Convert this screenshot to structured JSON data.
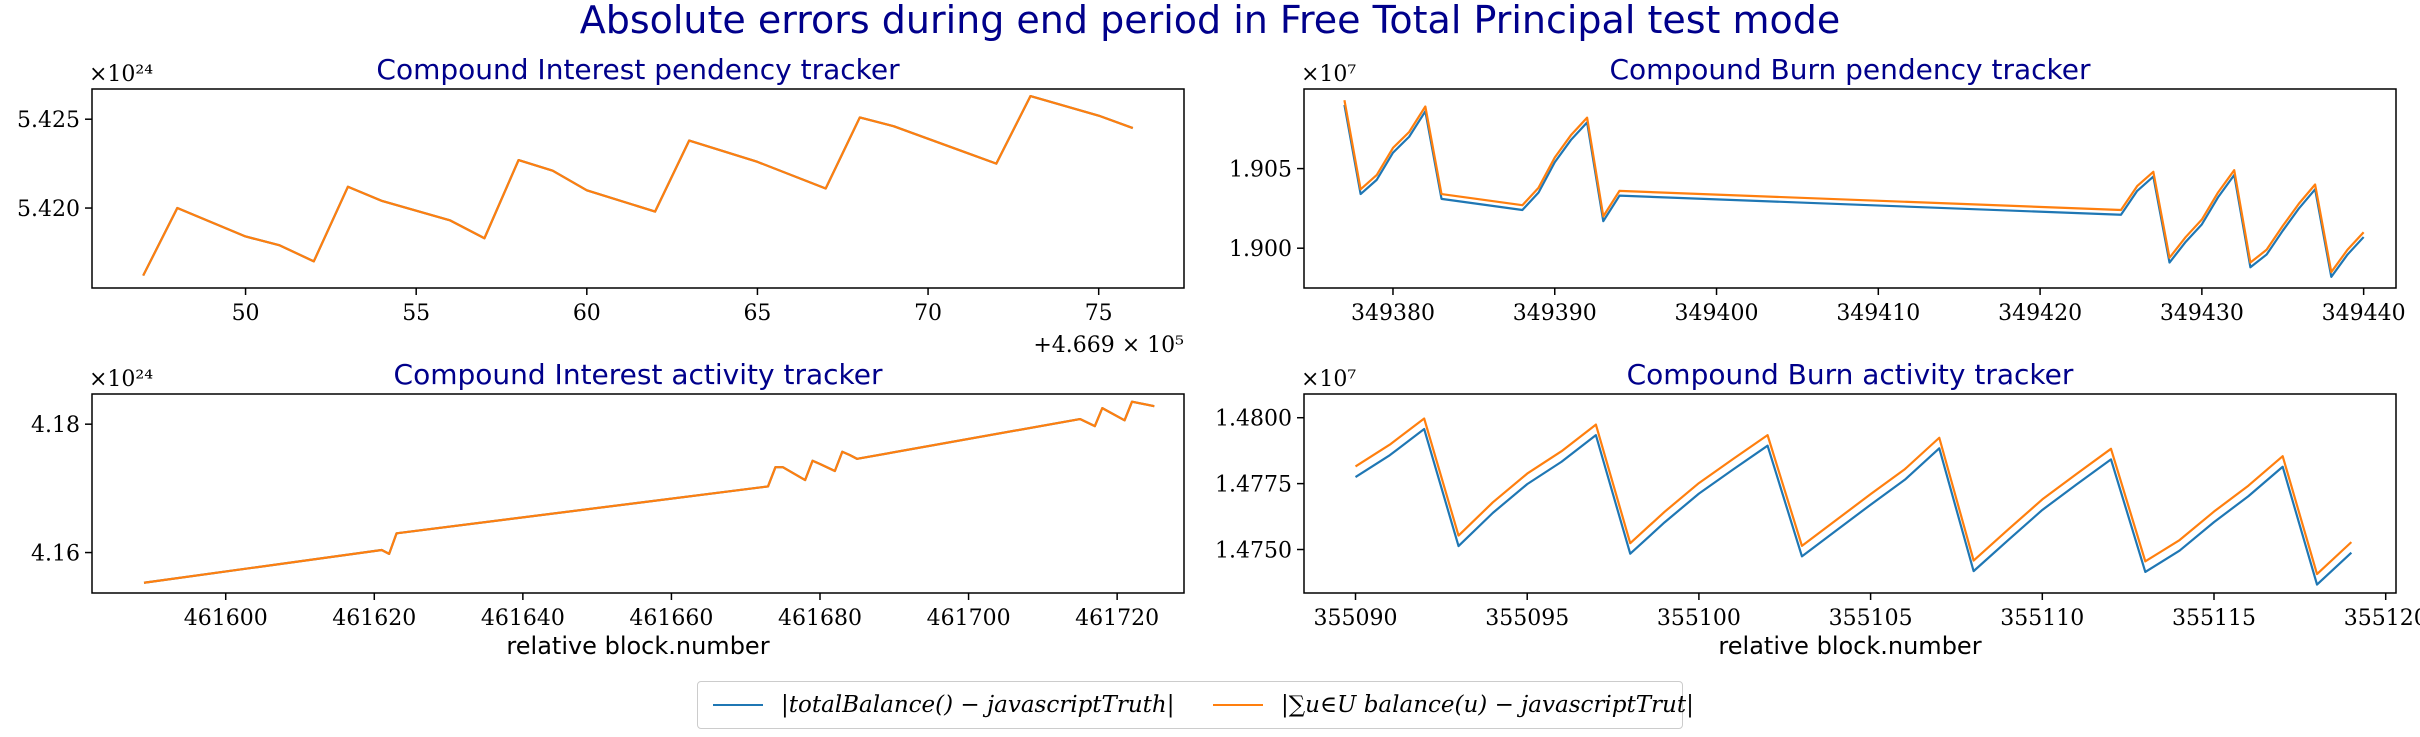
{
  "figure": {
    "suptitle": "Absolute errors during end period in Free Total Principal test mode",
    "colors": {
      "series1": "#1f77b4",
      "series2": "#ff7f0e",
      "title": "#00008b"
    }
  },
  "legend": {
    "items": [
      {
        "label": "|totalBalance() − javascriptTruth|",
        "color": "#1f77b4"
      },
      {
        "label": "|∑u∈U balance(u) − javascriptTrut|",
        "color": "#ff7f0e"
      }
    ]
  },
  "chart_data": [
    {
      "type": "line",
      "title": "Compound Interest pendency tracker",
      "xlabel": "",
      "x_offset_label": "+4.669 × 10⁵",
      "y_multiplier_label": "×10²⁴",
      "xlim": [
        45.5,
        77.5
      ],
      "ylim": [
        5.4155,
        5.4267
      ],
      "xticks": [
        50,
        55,
        60,
        65,
        70,
        75
      ],
      "yticks": [
        5.42,
        5.425
      ],
      "xtick_labels": [
        "50",
        "55",
        "60",
        "65",
        "70",
        "75"
      ],
      "ytick_labels": [
        "5.420",
        "5.425"
      ],
      "series": [
        {
          "color": "#1f77b4",
          "x": [
            47,
            48,
            50,
            51,
            52,
            53,
            54,
            56,
            57,
            58,
            59,
            60,
            62,
            63,
            65,
            67,
            68,
            69,
            71,
            72,
            73,
            75,
            76
          ],
          "y": [
            5.4162,
            5.42,
            5.4184,
            5.4179,
            5.417,
            5.4212,
            5.4204,
            5.4193,
            5.4183,
            5.4227,
            5.4221,
            5.421,
            5.4198,
            5.4238,
            5.4226,
            5.4211,
            5.4251,
            5.4246,
            5.4232,
            5.4225,
            5.4263,
            5.4252,
            5.4245
          ]
        },
        {
          "color": "#ff7f0e",
          "x": [
            47,
            48,
            50,
            51,
            52,
            53,
            54,
            56,
            57,
            58,
            59,
            60,
            62,
            63,
            65,
            67,
            68,
            69,
            71,
            72,
            73,
            75,
            76
          ],
          "y": [
            5.4162,
            5.42,
            5.4184,
            5.4179,
            5.417,
            5.4212,
            5.4204,
            5.4193,
            5.4183,
            5.4227,
            5.4221,
            5.421,
            5.4198,
            5.4238,
            5.4226,
            5.4211,
            5.4251,
            5.4246,
            5.4232,
            5.4225,
            5.4263,
            5.4252,
            5.4245
          ]
        }
      ]
    },
    {
      "type": "line",
      "title": "Compound Burn pendency tracker",
      "xlabel": "",
      "x_offset_label": "",
      "y_multiplier_label": "×10⁷",
      "xlim": [
        349374.5,
        349442.0
      ],
      "ylim": [
        1.8975,
        1.91
      ],
      "xticks": [
        349380,
        349390,
        349400,
        349410,
        349420,
        349430,
        349440
      ],
      "yticks": [
        1.9,
        1.905
      ],
      "xtick_labels": [
        "349380",
        "349390",
        "349400",
        "349410",
        "349420",
        "349430",
        "349440"
      ],
      "ytick_labels": [
        "1.900",
        "1.905"
      ],
      "series": [
        {
          "color": "#1f77b4",
          "x": [
            349377,
            349378,
            349379,
            349380,
            349381,
            349382,
            349383,
            349388,
            349389,
            349390,
            349391,
            349392,
            349393,
            349394,
            349425,
            349426,
            349427,
            349428,
            349429,
            349430,
            349431,
            349432,
            349433,
            349434,
            349435,
            349436,
            349437,
            349438,
            349439,
            349440
          ],
          "y": [
            1.909,
            1.9034,
            1.9043,
            1.906,
            1.907,
            1.9086,
            1.9031,
            1.9024,
            1.9035,
            1.9054,
            1.9068,
            1.9079,
            1.9017,
            1.9033,
            1.9021,
            1.9036,
            1.9045,
            1.8991,
            1.9004,
            1.9015,
            1.9032,
            1.9046,
            1.8988,
            1.8996,
            1.9011,
            1.9025,
            1.9037,
            1.8982,
            1.8996,
            1.9007
          ]
        },
        {
          "color": "#ff7f0e",
          "x": [
            349377,
            349378,
            349379,
            349380,
            349381,
            349382,
            349383,
            349388,
            349389,
            349390,
            349391,
            349392,
            349393,
            349394,
            349425,
            349426,
            349427,
            349428,
            349429,
            349430,
            349431,
            349432,
            349433,
            349434,
            349435,
            349436,
            349437,
            349438,
            349439,
            349440
          ],
          "y": [
            1.9093,
            1.9037,
            1.9046,
            1.9063,
            1.9073,
            1.9089,
            1.9034,
            1.9027,
            1.9038,
            1.9057,
            1.9071,
            1.9082,
            1.902,
            1.9036,
            1.9024,
            1.9039,
            1.9048,
            1.8994,
            1.9007,
            1.9018,
            1.9035,
            1.9049,
            1.8991,
            1.8999,
            1.9014,
            1.9028,
            1.904,
            1.8985,
            1.8999,
            1.901
          ]
        }
      ]
    },
    {
      "type": "line",
      "title": "Compound Interest activity tracker",
      "xlabel": "relative block.number",
      "x_offset_label": "",
      "y_multiplier_label": "×10²⁴",
      "xlim": [
        461582,
        461729
      ],
      "ylim": [
        4.1537,
        4.1847
      ],
      "xticks": [
        461600,
        461620,
        461640,
        461660,
        461680,
        461700,
        461720
      ],
      "yticks": [
        4.16,
        4.18
      ],
      "xtick_labels": [
        "461600",
        "461620",
        "461640",
        "461660",
        "461680",
        "461700",
        "461720"
      ],
      "ytick_labels": [
        "4.16",
        "4.18"
      ],
      "series": [
        {
          "color": "#1f77b4",
          "x": [
            461589,
            461621,
            461622,
            461623,
            461673,
            461674,
            461675,
            461678,
            461679,
            461680,
            461682,
            461683,
            461684,
            461685,
            461715,
            461717,
            461718,
            461721,
            461722,
            461725
          ],
          "y": [
            4.1553,
            4.1604,
            4.1598,
            4.163,
            4.1703,
            4.1733,
            4.1733,
            4.1713,
            4.1743,
            4.1738,
            4.1727,
            4.1757,
            4.1752,
            4.1746,
            4.1808,
            4.1797,
            4.1825,
            4.1806,
            4.1835,
            4.1828
          ]
        },
        {
          "color": "#ff7f0e",
          "x": [
            461589,
            461621,
            461622,
            461623,
            461673,
            461674,
            461675,
            461678,
            461679,
            461680,
            461682,
            461683,
            461684,
            461685,
            461715,
            461717,
            461718,
            461721,
            461722,
            461725
          ],
          "y": [
            4.1553,
            4.1604,
            4.1598,
            4.163,
            4.1703,
            4.1733,
            4.1733,
            4.1713,
            4.1743,
            4.1738,
            4.1727,
            4.1757,
            4.1752,
            4.1746,
            4.1808,
            4.1797,
            4.1825,
            4.1806,
            4.1835,
            4.1828
          ]
        }
      ]
    },
    {
      "type": "line",
      "title": "Compound Burn activity tracker",
      "xlabel": "relative block.number",
      "x_offset_label": "",
      "y_multiplier_label": "×10⁷",
      "xlim": [
        355088.5,
        355120.3
      ],
      "ylim": [
        1.47335,
        1.4809
      ],
      "xticks": [
        355090,
        355095,
        355100,
        355105,
        355110,
        355115,
        355120
      ],
      "yticks": [
        1.475,
        1.4775,
        1.48
      ],
      "xtick_labels": [
        "355090",
        "355095",
        "355100",
        "355105",
        "355110",
        "355115",
        "355120"
      ],
      "ytick_labels": [
        "1.4750",
        "1.4775",
        "1.4800"
      ],
      "series": [
        {
          "color": "#1f77b4",
          "x": [
            355090,
            355091,
            355092,
            355093,
            355094,
            355095,
            355096,
            355097,
            355098,
            355099,
            355100,
            355101,
            355102,
            355103,
            355104,
            355105,
            355106,
            355107,
            355108,
            355109,
            355110,
            355111,
            355112,
            355113,
            355114,
            355115,
            355116,
            355117,
            355118,
            355119
          ],
          "y": [
            1.47775,
            1.47858,
            1.47957,
            1.47513,
            1.47639,
            1.47748,
            1.47833,
            1.47934,
            1.47484,
            1.47603,
            1.47712,
            1.47804,
            1.47894,
            1.47474,
            1.47572,
            1.4767,
            1.47765,
            1.47884,
            1.47418,
            1.47535,
            1.4765,
            1.47747,
            1.47842,
            1.47415,
            1.47496,
            1.47604,
            1.47702,
            1.47814,
            1.47367,
            1.47488
          ]
        },
        {
          "color": "#ff7f0e",
          "x": [
            355090,
            355091,
            355092,
            355093,
            355094,
            355095,
            355096,
            355097,
            355098,
            355099,
            355100,
            355101,
            355102,
            355103,
            355104,
            355105,
            355106,
            355107,
            355108,
            355109,
            355110,
            355111,
            355112,
            355113,
            355114,
            355115,
            355116,
            355117,
            355118,
            355119
          ],
          "y": [
            1.47815,
            1.47898,
            1.47997,
            1.47553,
            1.47679,
            1.47788,
            1.47873,
            1.47974,
            1.47524,
            1.47643,
            1.47752,
            1.47844,
            1.47934,
            1.47514,
            1.47612,
            1.4771,
            1.47805,
            1.47924,
            1.47458,
            1.47575,
            1.4769,
            1.47787,
            1.47882,
            1.47455,
            1.47536,
            1.47644,
            1.47742,
            1.47854,
            1.47407,
            1.47528
          ]
        }
      ]
    }
  ]
}
